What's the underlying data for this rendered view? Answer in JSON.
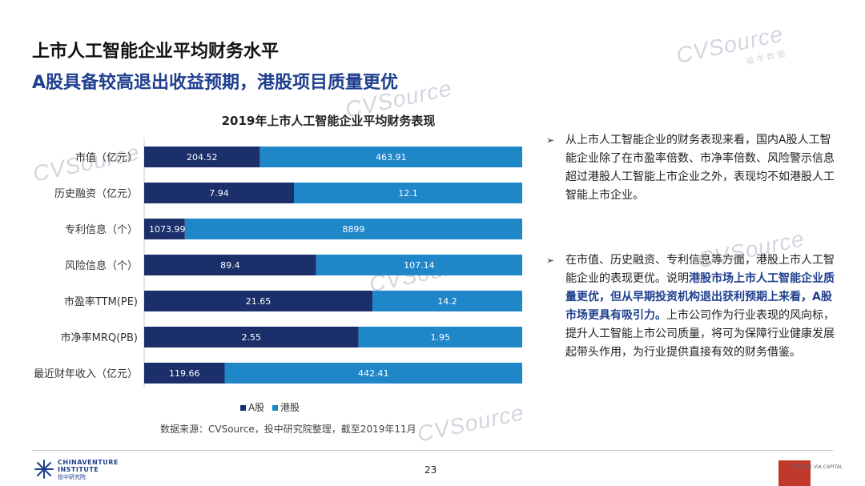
{
  "title": "上市人工智能企业平均财务水平",
  "subtitle": "A股具备较高退出收益预期，港股项目质量更优",
  "watermark": {
    "text": "CVSource",
    "sub": "投中数据"
  },
  "chart_data": {
    "type": "bar",
    "orientation": "horizontal",
    "stacked": "percent",
    "title": "2019年上市人工智能企业平均财务表现",
    "categories": [
      "市值（亿元）",
      "历史融资（亿元）",
      "专利信息（个）",
      "风险信息（个）",
      "市盈率TTM(PE)",
      "市净率MRQ(PB)",
      "最近财年收入（亿元）"
    ],
    "series": [
      {
        "name": "A股",
        "color": "#1b2f6b",
        "values": [
          204.52,
          7.94,
          1073.99,
          89.4,
          21.65,
          2.55,
          119.66
        ],
        "labels": [
          "204.52",
          "7.94",
          "1073.99",
          "89.4",
          "21.65",
          "2.55",
          "119.66"
        ]
      },
      {
        "name": "港股",
        "color": "#1f86c8",
        "values": [
          463.91,
          12.1,
          8899,
          107.14,
          14.2,
          1.95,
          442.41
        ],
        "labels": [
          "463.91",
          "12.1",
          "8899",
          "107.14",
          "14.2",
          "1.95",
          "442.41"
        ]
      }
    ],
    "legend_position": "bottom",
    "grid": false
  },
  "legend": {
    "a_label": "A股",
    "hk_label": "港股"
  },
  "source": "数据来源：CVSource，投中研究院整理，截至2019年11月",
  "bullets": {
    "mark": "➢",
    "b1": "从上市人工智能企业的财务表现来看，国内A股人工智能企业除了在市盈率倍数、市净率倍数、风险警示信息超过港股人工智能上市企业之外，表现均不如港股人工智能上市企业。",
    "b2_pre": "在市值、历史融资、专利信息等方面，港股上市人工智能企业的表现更优。说明",
    "b2_hl": "港股市场上市人工智能企业质量更优，但从早期投资机构退出获利预期上来看，A股市场更具有吸引力。",
    "b2_post": "上市公司作为行业表现的风向标，提升人工智能上市公司质量，将可为保障行业健康发展起带头作用，为行业提供直接有效的财务借鉴。"
  },
  "footer": {
    "logo_line1": "CHINAVENTURE",
    "logo_line2": "INSTITUTE",
    "logo_line3": "投中研究院",
    "page_number": "23",
    "brand_text": "投中资本 VIA CAPITAL"
  },
  "colors": {
    "accent": "#1f3f8f",
    "a_share": "#1b2f6b",
    "hk_share": "#1f86c8"
  }
}
